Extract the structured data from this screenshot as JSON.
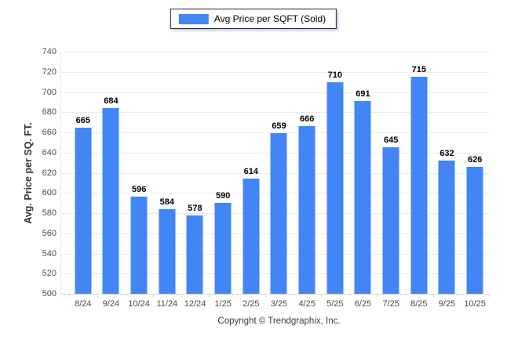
{
  "legend": {
    "label": "Avg Price per SQFT (Sold)"
  },
  "footer": {
    "copyright": "Copyright © Trendgraphix, Inc."
  },
  "colors": {
    "bar": "#4285f4",
    "grid": "#ececec",
    "axis_line": "#d4d4d4",
    "axis_text": "#4d4d4d",
    "value_label": "#000000",
    "legend_border": "#1b2a4a"
  },
  "chart_data": {
    "type": "bar",
    "title": "",
    "xlabel": "",
    "ylabel": "Avg. Price per SQ. FT.",
    "series_name": "Avg Price per SQFT (Sold)",
    "categories": [
      "8/24",
      "9/24",
      "10/24",
      "11/24",
      "12/24",
      "1/25",
      "2/25",
      "3/25",
      "4/25",
      "5/25",
      "6/25",
      "7/25",
      "8/25",
      "9/25",
      "10/25"
    ],
    "values": [
      665,
      684,
      596,
      584,
      578,
      590,
      614,
      659,
      666,
      710,
      691,
      645,
      715,
      632,
      626
    ],
    "ylim": [
      500,
      740
    ],
    "yticks": [
      500,
      520,
      540,
      560,
      580,
      600,
      620,
      640,
      660,
      680,
      700,
      720,
      740
    ],
    "grid": true,
    "data_labels": true,
    "legend_position": "top",
    "bar_color": "#4285f4"
  }
}
